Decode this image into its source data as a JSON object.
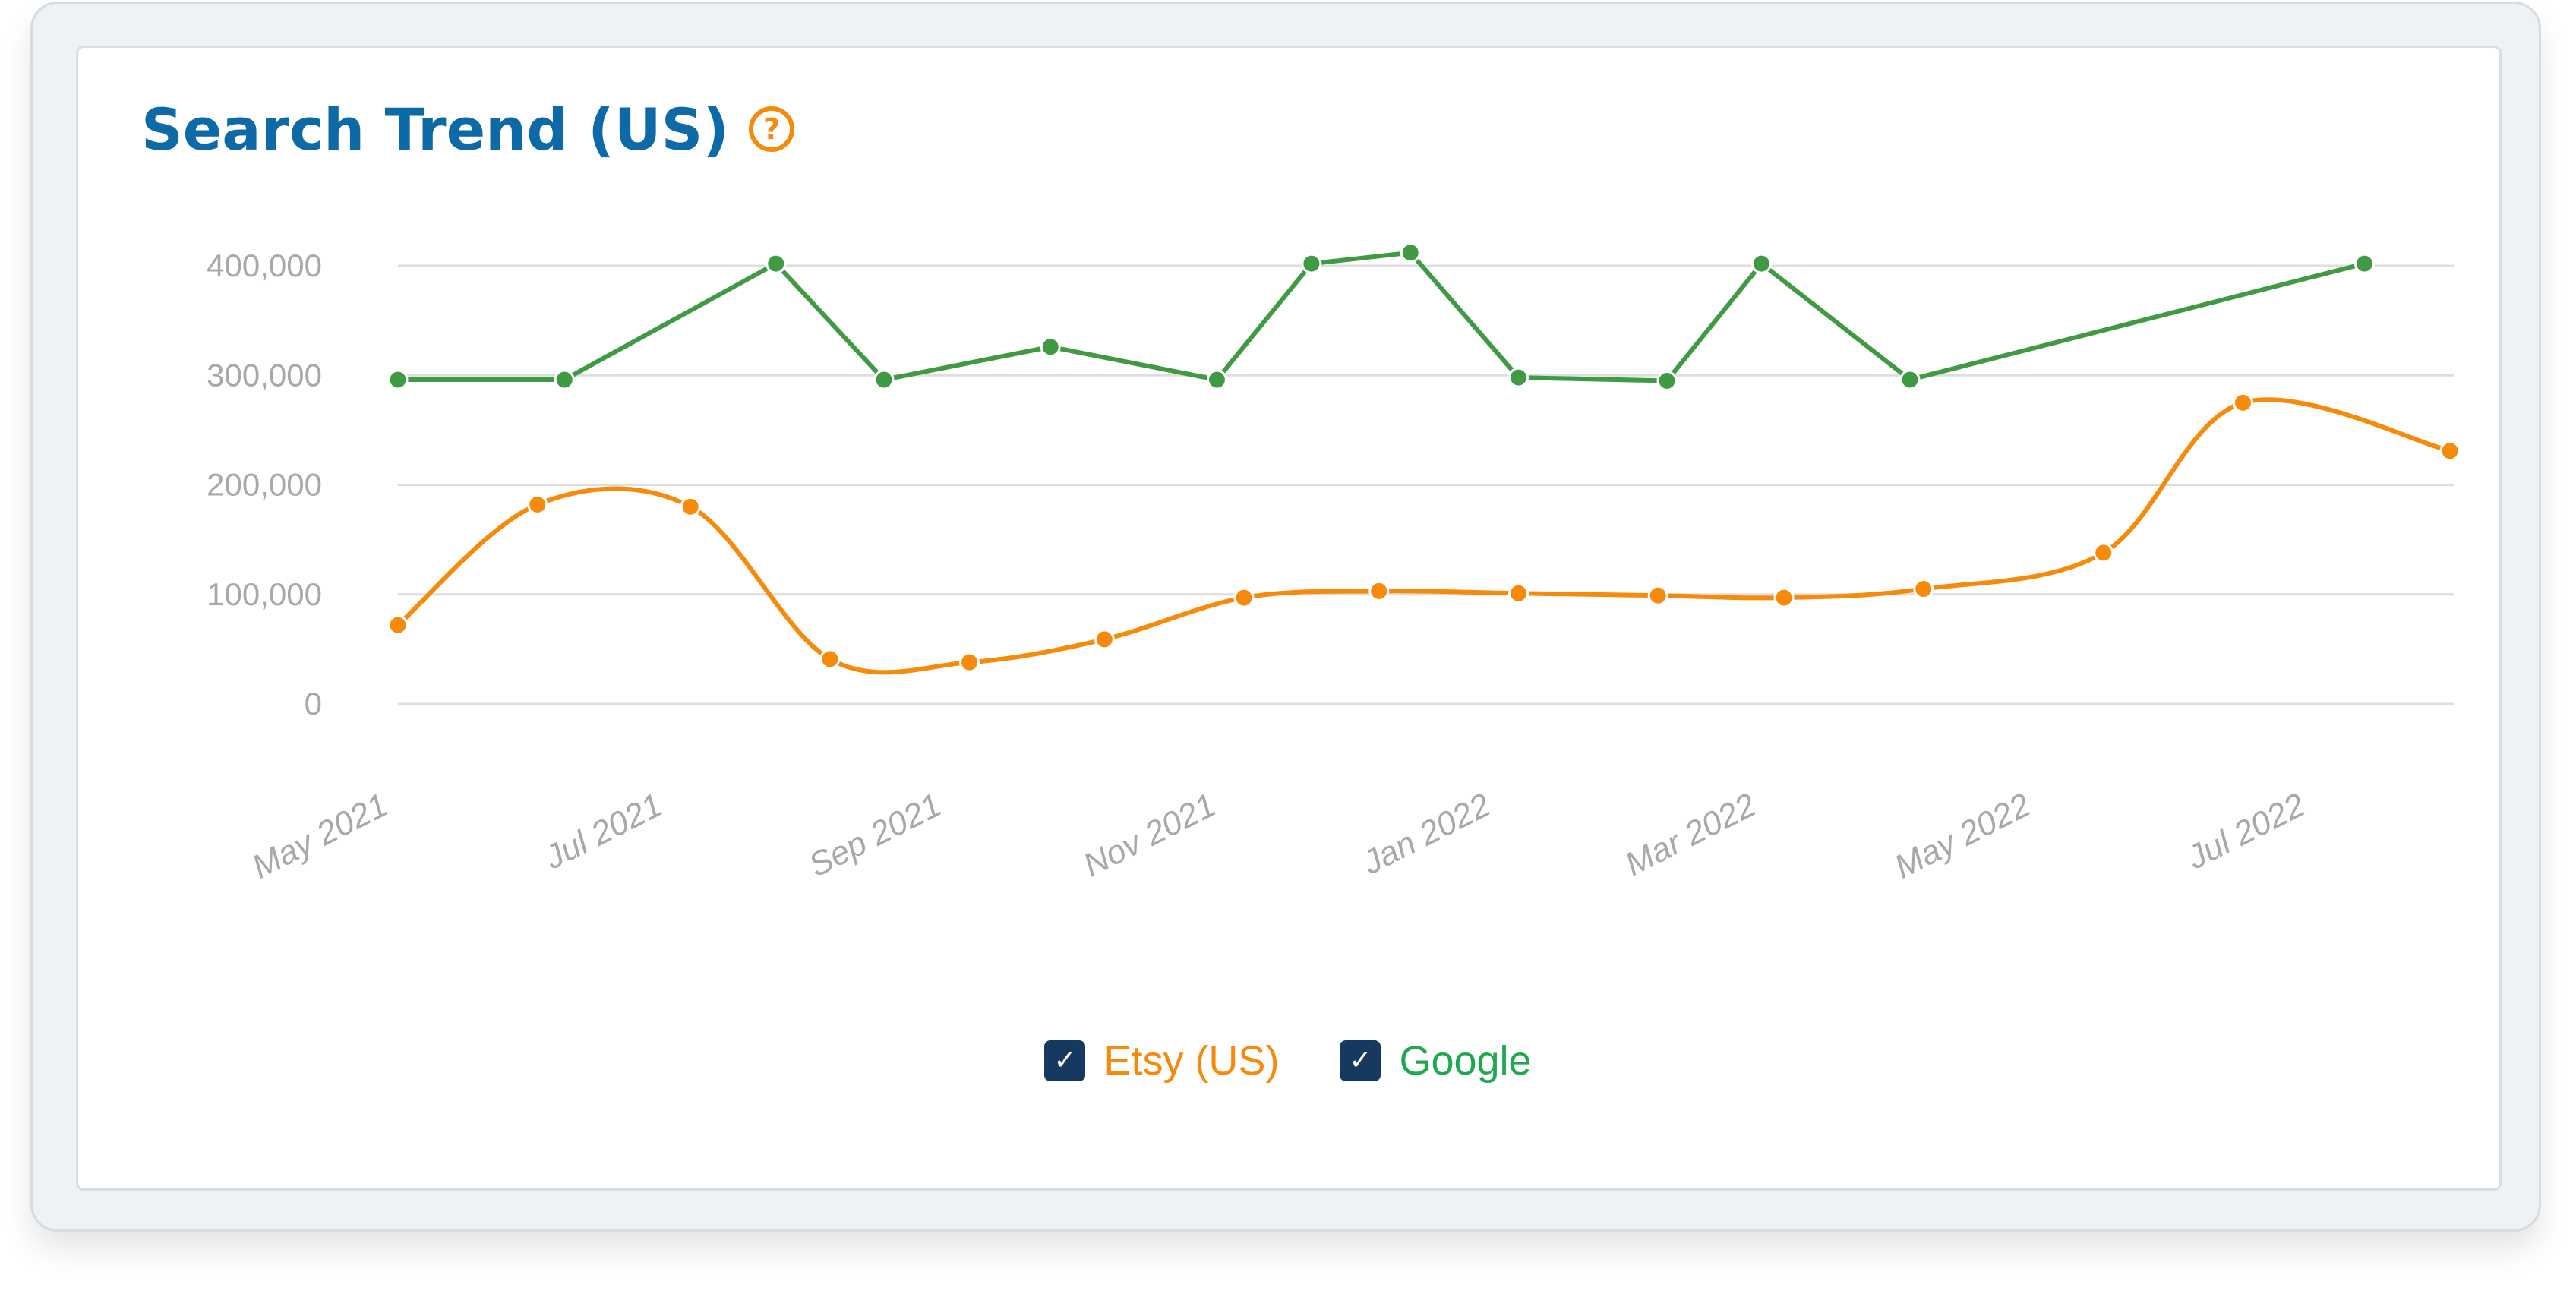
{
  "title": "Search Trend (US)",
  "help_icon": "question-circle-icon",
  "colors": {
    "title": "#0d6aa6",
    "etsy": "#f68a0a",
    "google_line": "#3f9a43",
    "google_label": "#1fa84f",
    "grid": "#dedede",
    "tick": "#a8a8a8",
    "checkbox": "#163a5f"
  },
  "legend": [
    {
      "label": "Etsy (US)",
      "checked": true,
      "icon": "checkmark-icon"
    },
    {
      "label": "Google",
      "checked": true,
      "icon": "checkmark-icon"
    }
  ],
  "chart_data": {
    "type": "line",
    "title": "Search Trend (US)",
    "ylim": [
      0,
      400000
    ],
    "yticks": [
      "0",
      "100,000",
      "200,000",
      "300,000",
      "400,000"
    ],
    "ytick_values": [
      0,
      100000,
      200000,
      300000,
      400000
    ],
    "xlim": [
      "2021-05-01",
      "2022-08-01"
    ],
    "xticks": [
      {
        "label": "May 2021",
        "date": "2021-05-01"
      },
      {
        "label": "Jul 2021",
        "date": "2021-07-01"
      },
      {
        "label": "Sep 2021",
        "date": "2021-09-01"
      },
      {
        "label": "Nov 2021",
        "date": "2021-11-01"
      },
      {
        "label": "Jan 2022",
        "date": "2022-01-01"
      },
      {
        "label": "Mar 2022",
        "date": "2022-03-01"
      },
      {
        "label": "May 2022",
        "date": "2022-05-01"
      },
      {
        "label": "Jul 2022",
        "date": "2022-07-01"
      }
    ],
    "grid": true,
    "legend_position": "bottom-center",
    "series": [
      {
        "name": "Etsy (US)",
        "smooth": true,
        "points": [
          {
            "x": "2021-05-01",
            "y": 72000
          },
          {
            "x": "2021-06-01",
            "y": 182000
          },
          {
            "x": "2021-07-05",
            "y": 180000
          },
          {
            "x": "2021-08-05",
            "y": 41000
          },
          {
            "x": "2021-09-05",
            "y": 38000
          },
          {
            "x": "2021-10-05",
            "y": 59000
          },
          {
            "x": "2021-11-05",
            "y": 97000
          },
          {
            "x": "2021-12-05",
            "y": 103000
          },
          {
            "x": "2022-01-05",
            "y": 101000
          },
          {
            "x": "2022-02-05",
            "y": 99000
          },
          {
            "x": "2022-03-05",
            "y": 97000
          },
          {
            "x": "2022-04-05",
            "y": 105000
          },
          {
            "x": "2022-05-15",
            "y": 138000
          },
          {
            "x": "2022-06-15",
            "y": 275000
          },
          {
            "x": "2022-07-31",
            "y": 231000
          }
        ]
      },
      {
        "name": "Google",
        "smooth": false,
        "points": [
          {
            "x": "2021-05-01",
            "y": 296000
          },
          {
            "x": "2021-06-07",
            "y": 296000
          },
          {
            "x": "2021-07-24",
            "y": 402000
          },
          {
            "x": "2021-08-17",
            "y": 296000
          },
          {
            "x": "2021-09-23",
            "y": 326000
          },
          {
            "x": "2021-10-30",
            "y": 296000
          },
          {
            "x": "2021-11-20",
            "y": 402000
          },
          {
            "x": "2021-12-12",
            "y": 412000
          },
          {
            "x": "2022-01-05",
            "y": 298000
          },
          {
            "x": "2022-02-07",
            "y": 295000
          },
          {
            "x": "2022-02-28",
            "y": 402000
          },
          {
            "x": "2022-04-02",
            "y": 296000
          },
          {
            "x": "2022-07-12",
            "y": 402000
          }
        ]
      }
    ]
  }
}
